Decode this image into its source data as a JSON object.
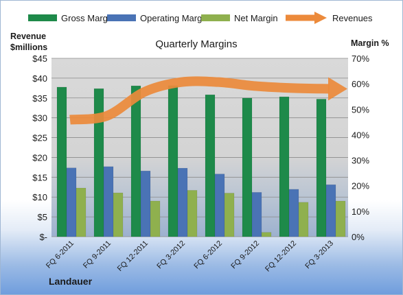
{
  "chart_data": {
    "type": "bar",
    "title": "Quarterly Margins",
    "left_axis_label_line1": "Revenue",
    "left_axis_label_line2": "$millions",
    "right_axis_label": "Margin %",
    "footer": "Landauer",
    "categories": [
      "FQ 6-2011",
      "FQ 9-2011",
      "FQ 12-2011",
      "FQ 3-2012",
      "FQ 6-2012",
      "FQ 9-2012",
      "FQ 12-2012",
      "FQ 3-2013"
    ],
    "left_ticks": [
      "$45",
      "$40",
      "$35",
      "$30",
      "$25",
      "$20",
      "$15",
      "$10",
      "$5",
      "$-"
    ],
    "right_ticks": [
      "70%",
      "60%",
      "50%",
      "40%",
      "30%",
      "20%",
      "10%",
      "0%"
    ],
    "left_ylim": [
      0,
      45
    ],
    "right_ylim": [
      0,
      70
    ],
    "series": [
      {
        "name": "Gross Margin",
        "color": "#1e8a4a",
        "axis": "right",
        "values": [
          58.7,
          58.1,
          59.2,
          59.3,
          55.7,
          54.4,
          54.9,
          54.0
        ]
      },
      {
        "name": "Operating Margin",
        "color": "#4a73b5",
        "axis": "right",
        "values": [
          27.0,
          27.5,
          25.8,
          26.9,
          24.6,
          17.4,
          18.6,
          20.4
        ]
      },
      {
        "name": "Net Margin",
        "color": "#8fb04e",
        "axis": "right",
        "values": [
          19.1,
          17.2,
          14.0,
          18.2,
          17.1,
          1.7,
          13.5,
          14.0
        ]
      },
      {
        "name": "Revenues",
        "color": "#ec8a3b",
        "axis": "left",
        "type": "line",
        "values": [
          29.5,
          30.5,
          36.5,
          39,
          39,
          38,
          37.5,
          37.3
        ]
      }
    ],
    "legend_position": "top"
  }
}
